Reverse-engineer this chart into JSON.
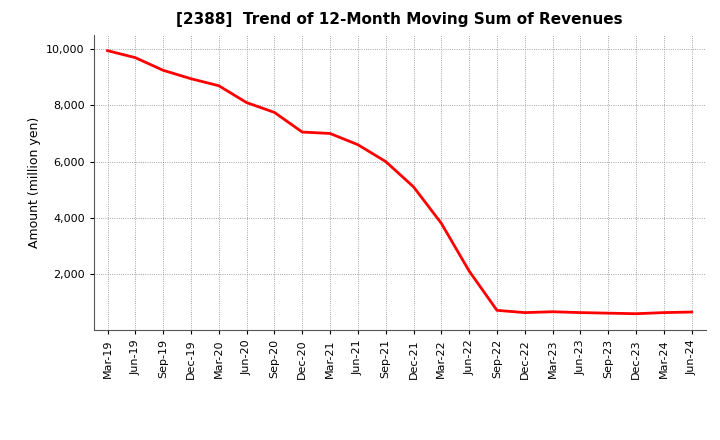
{
  "title": "[2388]  Trend of 12-Month Moving Sum of Revenues",
  "ylabel": "Amount (million yen)",
  "line_color": "#FF0000",
  "line_width": 2.0,
  "background_color": "#FFFFFF",
  "plot_bg_color": "#FFFFFF",
  "grid_color": "#888888",
  "ylim": [
    0,
    10500
  ],
  "yticks": [
    2000,
    4000,
    6000,
    8000,
    10000
  ],
  "x_labels": [
    "Mar-19",
    "Jun-19",
    "Sep-19",
    "Dec-19",
    "Mar-20",
    "Jun-20",
    "Sep-20",
    "Dec-20",
    "Mar-21",
    "Jun-21",
    "Sep-21",
    "Dec-21",
    "Mar-22",
    "Jun-22",
    "Sep-22",
    "Dec-22",
    "Mar-23",
    "Jun-23",
    "Sep-23",
    "Dec-23",
    "Mar-24",
    "Jun-24"
  ],
  "y_values": [
    9950,
    9700,
    9250,
    8950,
    8700,
    8100,
    7750,
    7050,
    7000,
    6600,
    6000,
    5100,
    3800,
    2100,
    700,
    620,
    650,
    620,
    600,
    580,
    620,
    640
  ],
  "title_fontsize": 11,
  "ylabel_fontsize": 9,
  "tick_fontsize": 8
}
